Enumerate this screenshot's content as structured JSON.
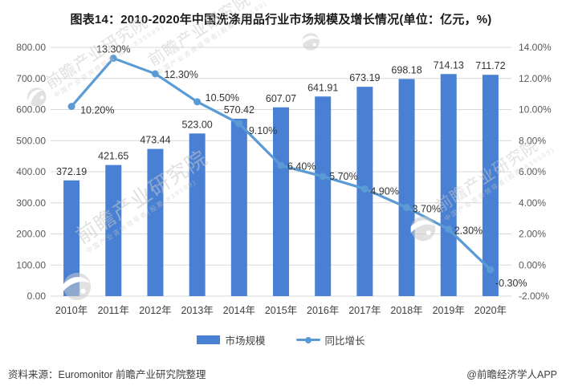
{
  "title": "图表14：2010-2020年中国洗涤用品行业市场规模及增长情况(单位：亿元，%)",
  "chart_data": {
    "type": "bar+line",
    "categories": [
      "2010年",
      "2011年",
      "2012年",
      "2013年",
      "2014年",
      "2015年",
      "2016年",
      "2017年",
      "2018年",
      "2019年",
      "2020年"
    ],
    "series": [
      {
        "name": "市场规模",
        "type": "bar",
        "axis": "left",
        "color": "#4a80d4",
        "values": [
          372.19,
          421.65,
          473.44,
          523.0,
          570.42,
          607.07,
          641.91,
          673.19,
          698.18,
          714.13,
          711.72
        ],
        "labels": [
          "372.19",
          "421.65",
          "473.44",
          "523.00",
          "570.42",
          "607.07",
          "641.91",
          "673.19",
          "698.18",
          "714.13",
          "711.72"
        ]
      },
      {
        "name": "同比增长",
        "type": "line",
        "axis": "right",
        "color": "#5b9bd5",
        "values": [
          10.2,
          13.3,
          12.3,
          10.5,
          9.1,
          6.4,
          5.7,
          4.9,
          3.7,
          2.3,
          -0.3
        ],
        "labels": [
          "10.20%",
          "13.30%",
          "12.30%",
          "10.50%",
          "9.10%",
          "6.40%",
          "5.70%",
          "4.90%",
          "3.70%",
          "2.30%",
          "-0.30%"
        ]
      }
    ],
    "left_axis": {
      "min": 0,
      "max": 800,
      "ticks": [
        "800.00",
        "700.00",
        "600.00",
        "500.00",
        "400.00",
        "300.00",
        "200.00",
        "100.00",
        "0.00"
      ]
    },
    "right_axis": {
      "min": -2,
      "max": 14,
      "ticks": [
        "14.00%",
        "12.00%",
        "10.00%",
        "8.00%",
        "6.00%",
        "4.00%",
        "2.00%",
        "0.00%",
        "-2.00%"
      ]
    },
    "grid": "horizontal",
    "legend_position": "bottom"
  },
  "legend": [
    {
      "label": "市场规模"
    },
    {
      "label": "同比增长"
    }
  ],
  "footer": {
    "source": "资料来源：Euromonitor 前瞻产业研究院整理",
    "credit": "@前瞻经济学人APP"
  },
  "watermark": {
    "text": "前瞻产业研究院",
    "subtext": "中国产业咨询领导者(股票:839599)"
  },
  "colors": {
    "bar": "#4a80d4",
    "line": "#5b9bd5",
    "gridline": "#d9d9d9",
    "axis_text": "#595959",
    "data_label": "#333333"
  }
}
